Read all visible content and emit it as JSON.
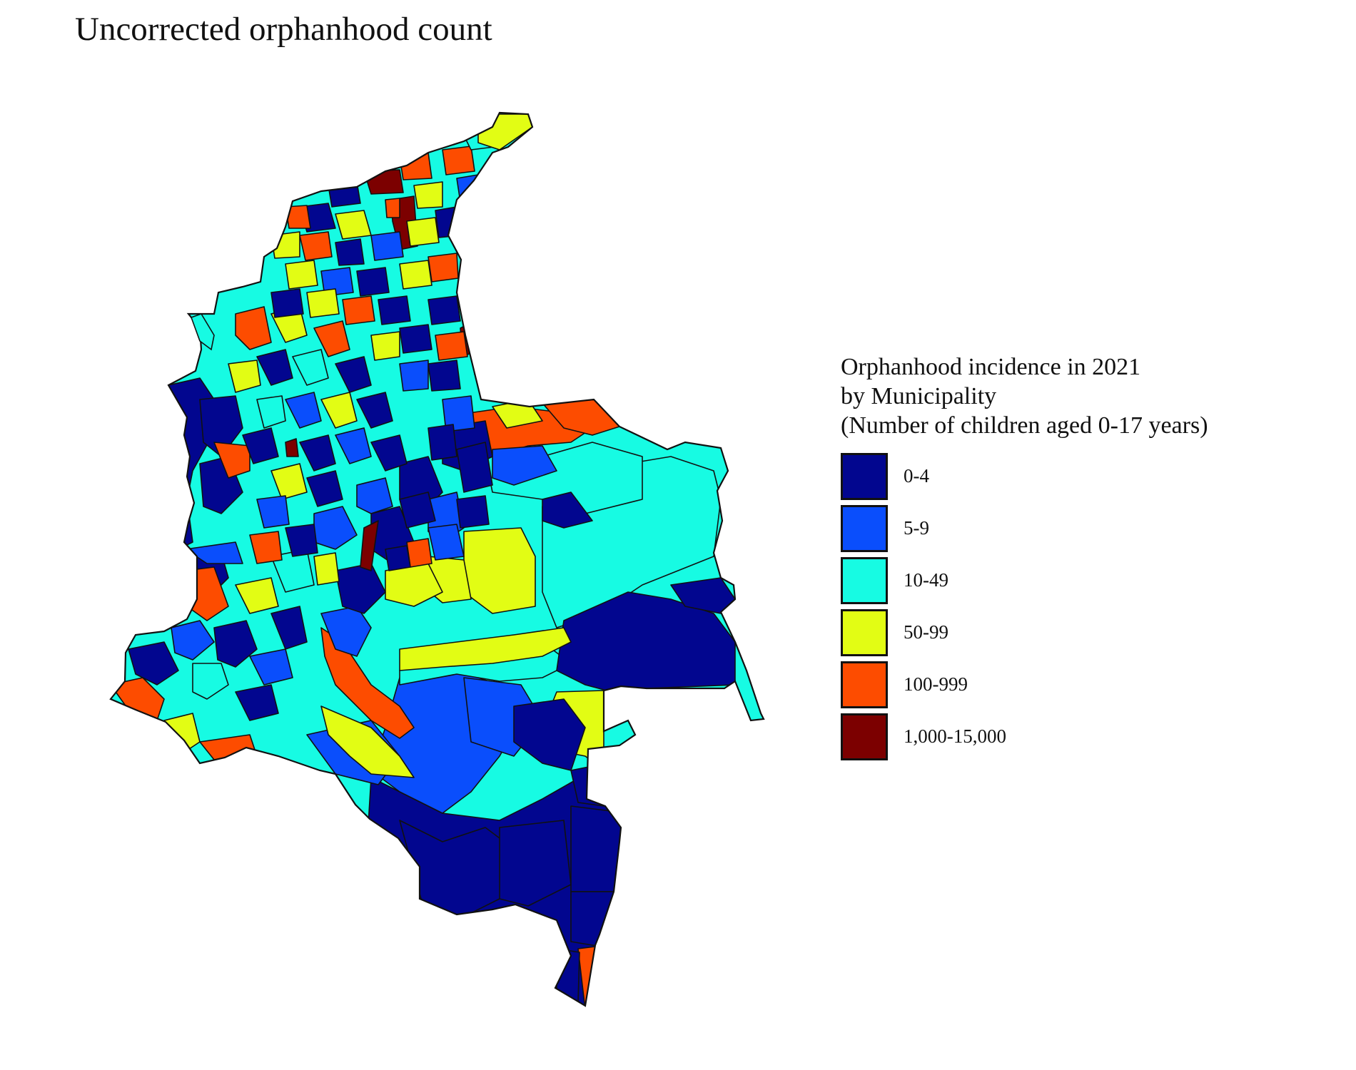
{
  "title": "Uncorrected orphanhood count",
  "legend": {
    "title_lines": [
      "Orphanhood incidence in 2021",
      "by Municipality",
      "(Number of children aged 0-17 years)"
    ],
    "items": [
      {
        "label": "0-4",
        "color": "#02068f"
      },
      {
        "label": "5-9",
        "color": "#0a4efc"
      },
      {
        "label": "10-49",
        "color": "#17fbe3"
      },
      {
        "label": "50-99",
        "color": "#e2fd14"
      },
      {
        "label": "100-999",
        "color": "#fd4c00"
      },
      {
        "label": "1,000-15,000",
        "color": "#7c0000"
      }
    ]
  },
  "colors": {
    "border": "#111111",
    "background": "#ffffff"
  }
}
